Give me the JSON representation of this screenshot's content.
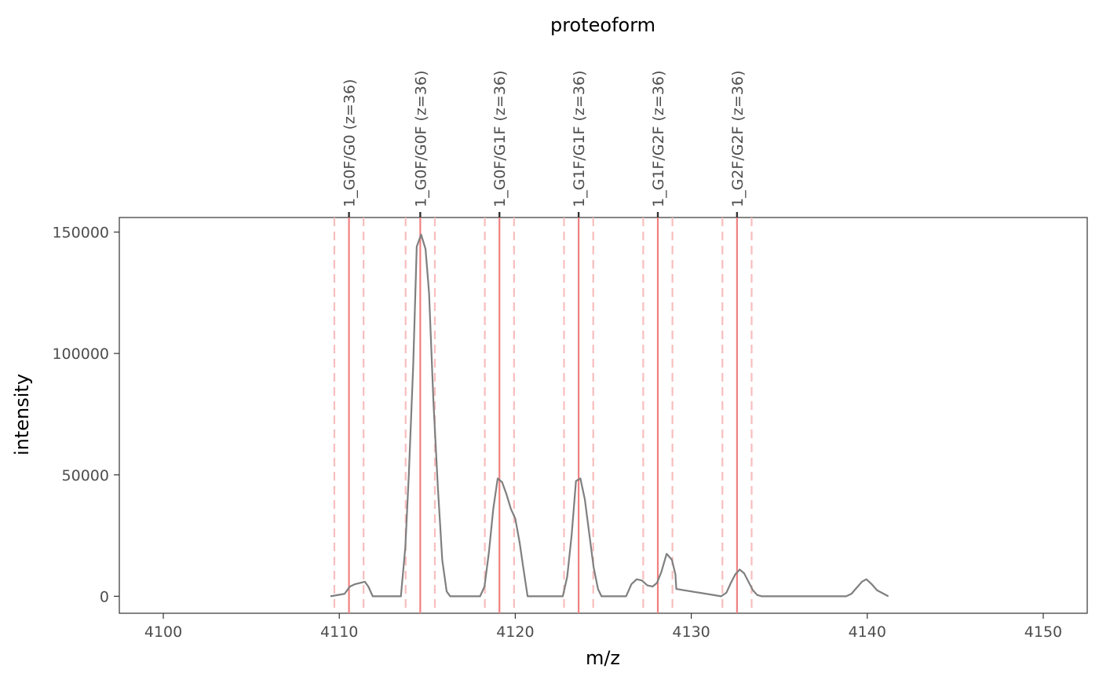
{
  "chart_data": {
    "type": "line",
    "title": "",
    "xlabel": "m/z",
    "ylabel": "intensity",
    "top_axis_title": "proteoform",
    "xlim": [
      4097.5,
      4152.5
    ],
    "ylim": [
      -7000,
      156000
    ],
    "x_ticks": [
      {
        "value": 4100,
        "label": "4100"
      },
      {
        "value": 4110,
        "label": "4110"
      },
      {
        "value": 4120,
        "label": "4120"
      },
      {
        "value": 4130,
        "label": "4130"
      },
      {
        "value": 4140,
        "label": "4140"
      },
      {
        "value": 4150,
        "label": "4150"
      }
    ],
    "y_ticks": [
      {
        "value": 0,
        "label": "0"
      },
      {
        "value": 50000,
        "label": "50000"
      },
      {
        "value": 100000,
        "label": "100000"
      },
      {
        "value": 150000,
        "label": "150000"
      }
    ],
    "proteoforms": [
      {
        "label": "1_G0F/G0 (z=36)",
        "center": 4110.55,
        "lower": 4109.72,
        "upper": 4111.38
      },
      {
        "label": "1_G0F/G0F (z=36)",
        "center": 4114.6,
        "lower": 4113.77,
        "upper": 4115.43
      },
      {
        "label": "1_G0F/G1F (z=36)",
        "center": 4119.1,
        "lower": 4118.27,
        "upper": 4119.93
      },
      {
        "label": "1_G1F/G1F (z=36)",
        "center": 4123.6,
        "lower": 4122.77,
        "upper": 4124.43
      },
      {
        "label": "1_G1F/G2F (z=36)",
        "center": 4128.1,
        "lower": 4127.27,
        "upper": 4128.93
      },
      {
        "label": "1_G2F/G2F (z=36)",
        "center": 4132.6,
        "lower": 4131.77,
        "upper": 4133.43
      }
    ],
    "series": [
      {
        "color": "#7f7f7f",
        "x": [
          4109.5,
          4110.3,
          4110.6,
          4110.9,
          4111.2,
          4111.45,
          4111.65,
          4111.9,
          4113.5,
          4113.75,
          4113.95,
          4114.2,
          4114.4,
          4114.65,
          4114.9,
          4115.1,
          4115.35,
          4115.6,
          4115.85,
          4116.1,
          4116.3,
          4118.0,
          4118.25,
          4118.5,
          4118.75,
          4119.0,
          4119.25,
          4119.5,
          4119.75,
          4120.0,
          4120.25,
          4120.45,
          4120.7,
          4122.7,
          4122.95,
          4123.2,
          4123.45,
          4123.7,
          4123.95,
          4124.2,
          4124.45,
          4124.7,
          4124.9,
          4126.3,
          4126.6,
          4126.9,
          4127.2,
          4127.5,
          4127.8,
          4128.05,
          4128.3,
          4128.6,
          4128.9,
          4129.1,
          4129.15,
          4131.7,
          4132.0,
          4132.25,
          4132.5,
          4132.75,
          4133.0,
          4133.25,
          4133.5,
          4133.75,
          4134.0,
          4138.8,
          4139.1,
          4139.4,
          4139.7,
          4139.95,
          4140.25,
          4140.55,
          4141.2
        ],
        "y": [
          0,
          1000,
          4000,
          5000,
          5500,
          6000,
          4000,
          0,
          0,
          20000,
          50000,
          95000,
          144000,
          149000,
          143000,
          125000,
          80000,
          45000,
          15000,
          2000,
          0,
          0,
          4000,
          18000,
          36000,
          48500,
          47000,
          42000,
          36000,
          32000,
          22000,
          12000,
          0,
          0,
          8000,
          25000,
          47500,
          48500,
          40000,
          26000,
          12000,
          3000,
          0,
          0,
          5000,
          7000,
          6500,
          4500,
          4000,
          5500,
          10000,
          17500,
          15000,
          9000,
          3000,
          0,
          1500,
          5500,
          9000,
          11000,
          9500,
          6000,
          2500,
          500,
          0,
          0,
          1000,
          3500,
          6000,
          7000,
          5000,
          2500,
          0
        ]
      }
    ]
  },
  "colors": {
    "panel_border": "#333333",
    "center_line": "#f08080",
    "bound_line": "#f8bdbd",
    "spectrum": "#7f7f7f"
  }
}
